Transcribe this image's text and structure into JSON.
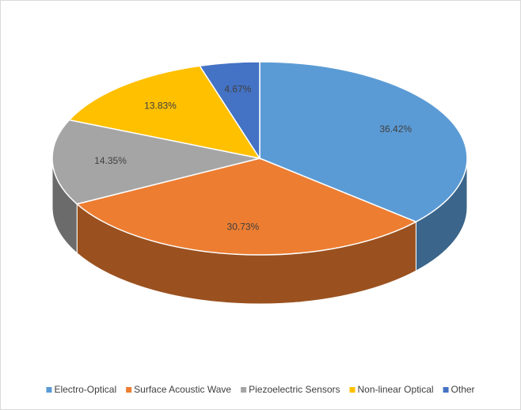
{
  "chart_data": {
    "type": "pie",
    "categories": [
      "Electro-Optical",
      "Surface Acoustic Wave",
      "Piezoelectric Sensors",
      "Non-linear Optical",
      "Other"
    ],
    "values": [
      36.42,
      30.73,
      14.35,
      13.83,
      4.67
    ],
    "value_labels": [
      "36.42%",
      "30.73%",
      "14.35%",
      "13.83%",
      "4.67%"
    ],
    "colors": [
      "#5b9bd5",
      "#ed7d31",
      "#a5a5a5",
      "#ffc000",
      "#4472c4"
    ],
    "legend": "bottom"
  }
}
